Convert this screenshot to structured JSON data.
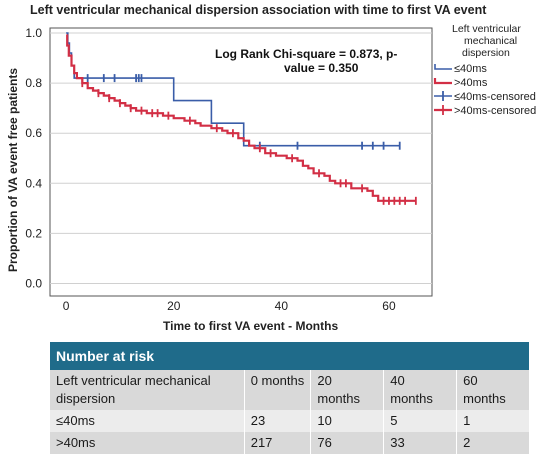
{
  "chart_data": {
    "type": "line",
    "title": "Left ventricular mechanical dispersion association with time to first VA event",
    "xlabel": "Time to first VA event - Months",
    "ylabel": "Proportion of VA event free patients",
    "xlim": [
      -3,
      68
    ],
    "ylim": [
      -0.05,
      1.02
    ],
    "xticks": [
      0,
      20,
      40,
      60
    ],
    "yticks": [
      0.0,
      0.2,
      0.4,
      0.6,
      0.8,
      1.0
    ],
    "ytick_labels": [
      "0.0",
      "0.2",
      "0.4",
      "0.6",
      "0.8",
      "1.0"
    ],
    "grid": "horizontal",
    "annotation": [
      "Log Rank Chi-square = 0.873, p-",
      "value = 0.350"
    ],
    "legend": {
      "title": [
        "Left ventricular",
        "mechanical",
        "dispersion"
      ],
      "position": "right",
      "entries": [
        "≤40ms",
        ">40ms",
        "≤40ms-censored",
        ">40ms-censored"
      ]
    },
    "series": [
      {
        "name": "≤40ms",
        "color": "#3a5da8",
        "step_points": [
          [
            0,
            1.0
          ],
          [
            0.3,
            0.96
          ],
          [
            0.6,
            0.92
          ],
          [
            1,
            0.87
          ],
          [
            1.5,
            0.82
          ],
          [
            20,
            0.82
          ],
          [
            20,
            0.73
          ],
          [
            27,
            0.73
          ],
          [
            27,
            0.64
          ],
          [
            33,
            0.64
          ],
          [
            33,
            0.55
          ],
          [
            62,
            0.55
          ]
        ],
        "censored": [
          [
            4,
            0.82
          ],
          [
            7,
            0.82
          ],
          [
            9,
            0.82
          ],
          [
            13,
            0.82
          ],
          [
            13.5,
            0.82
          ],
          [
            14,
            0.82
          ],
          [
            36,
            0.55
          ],
          [
            43,
            0.55
          ],
          [
            55,
            0.55
          ],
          [
            57,
            0.55
          ],
          [
            59,
            0.55
          ],
          [
            62,
            0.55
          ]
        ]
      },
      {
        "name": ">40ms",
        "color": "#d22f45",
        "step_points": [
          [
            0,
            0.99
          ],
          [
            0.2,
            0.95
          ],
          [
            0.5,
            0.91
          ],
          [
            1,
            0.87
          ],
          [
            1.5,
            0.84
          ],
          [
            2,
            0.82
          ],
          [
            3,
            0.8
          ],
          [
            4,
            0.78
          ],
          [
            5,
            0.77
          ],
          [
            6,
            0.76
          ],
          [
            7,
            0.75
          ],
          [
            8,
            0.74
          ],
          [
            9,
            0.73
          ],
          [
            10,
            0.72
          ],
          [
            11,
            0.71
          ],
          [
            12,
            0.7
          ],
          [
            13,
            0.69
          ],
          [
            15,
            0.68
          ],
          [
            18,
            0.67
          ],
          [
            20,
            0.66
          ],
          [
            22,
            0.65
          ],
          [
            24,
            0.64
          ],
          [
            25,
            0.63
          ],
          [
            27,
            0.62
          ],
          [
            29,
            0.61
          ],
          [
            30,
            0.6
          ],
          [
            32,
            0.58
          ],
          [
            33,
            0.57
          ],
          [
            34,
            0.55
          ],
          [
            35,
            0.54
          ],
          [
            37,
            0.52
          ],
          [
            39,
            0.51
          ],
          [
            41,
            0.5
          ],
          [
            43,
            0.49
          ],
          [
            44,
            0.47
          ],
          [
            45,
            0.46
          ],
          [
            46,
            0.44
          ],
          [
            48,
            0.43
          ],
          [
            49,
            0.41
          ],
          [
            50,
            0.4
          ],
          [
            53,
            0.38
          ],
          [
            56,
            0.37
          ],
          [
            57,
            0.35
          ],
          [
            58,
            0.33
          ],
          [
            65,
            0.33
          ]
        ],
        "censored": [
          [
            3,
            0.8
          ],
          [
            6,
            0.76
          ],
          [
            8,
            0.74
          ],
          [
            10,
            0.72
          ],
          [
            12,
            0.7
          ],
          [
            14,
            0.69
          ],
          [
            16,
            0.68
          ],
          [
            17,
            0.68
          ],
          [
            19,
            0.67
          ],
          [
            23,
            0.65
          ],
          [
            28,
            0.62
          ],
          [
            31,
            0.6
          ],
          [
            36,
            0.54
          ],
          [
            38,
            0.52
          ],
          [
            42,
            0.5
          ],
          [
            47,
            0.44
          ],
          [
            51,
            0.4
          ],
          [
            52,
            0.4
          ],
          [
            55,
            0.38
          ],
          [
            59,
            0.33
          ],
          [
            60,
            0.33
          ],
          [
            61,
            0.33
          ],
          [
            62,
            0.33
          ],
          [
            63,
            0.33
          ],
          [
            65,
            0.33
          ]
        ]
      }
    ]
  },
  "risk_table": {
    "title": "Number at risk",
    "header": [
      "Left ventricular mechanical dispersion",
      "0 months",
      "20 months",
      "40 months",
      "60 months"
    ],
    "rows": [
      [
        "≤40ms",
        "23",
        "10",
        "5",
        "1"
      ],
      [
        ">40ms",
        "217",
        "76",
        "33",
        "2"
      ]
    ]
  }
}
